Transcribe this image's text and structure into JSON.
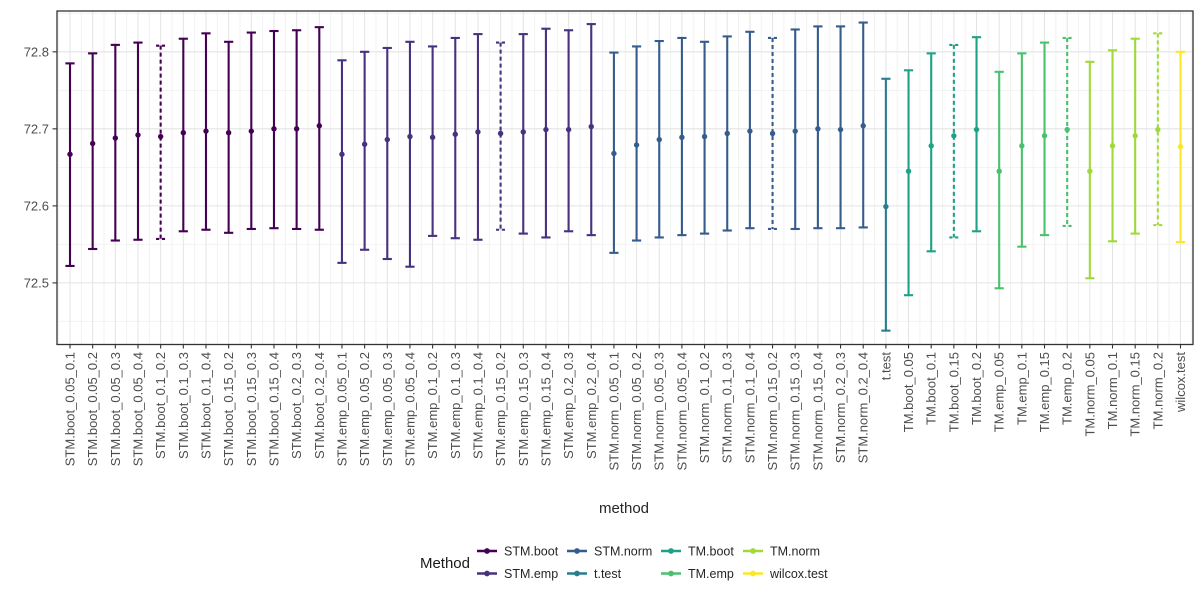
{
  "chart_data": {
    "type": "pointrange",
    "title": "",
    "xlabel": "method",
    "ylabel": "",
    "ylim": [
      72.42,
      72.853
    ],
    "y_ticks": [
      72.5,
      72.6,
      72.7,
      72.8
    ],
    "y_minor_ticks": [
      72.45,
      72.55,
      72.65,
      72.75,
      72.85
    ],
    "grid": true,
    "legend_position": "bottom",
    "points": [
      {
        "label": "STM.boot_0.05_0.1",
        "group": "STM.boot",
        "mid": 72.667,
        "lo": 72.522,
        "hi": 72.785,
        "dashed": false
      },
      {
        "label": "STM.boot_0.05_0.2",
        "group": "STM.boot",
        "mid": 72.681,
        "lo": 72.544,
        "hi": 72.798,
        "dashed": false
      },
      {
        "label": "STM.boot_0.05_0.3",
        "group": "STM.boot",
        "mid": 72.688,
        "lo": 72.555,
        "hi": 72.809,
        "dashed": false
      },
      {
        "label": "STM.boot_0.05_0.4",
        "group": "STM.boot",
        "mid": 72.692,
        "lo": 72.556,
        "hi": 72.812,
        "dashed": false
      },
      {
        "label": "STM.boot_0.1_0.2",
        "group": "STM.boot",
        "mid": 72.69,
        "lo": 72.557,
        "hi": 72.808,
        "dashed": true
      },
      {
        "label": "STM.boot_0.1_0.3",
        "group": "STM.boot",
        "mid": 72.695,
        "lo": 72.567,
        "hi": 72.817,
        "dashed": false
      },
      {
        "label": "STM.boot_0.1_0.4",
        "group": "STM.boot",
        "mid": 72.697,
        "lo": 72.569,
        "hi": 72.824,
        "dashed": false
      },
      {
        "label": "STM.boot_0.15_0.2",
        "group": "STM.boot",
        "mid": 72.695,
        "lo": 72.565,
        "hi": 72.813,
        "dashed": false
      },
      {
        "label": "STM.boot_0.15_0.3",
        "group": "STM.boot",
        "mid": 72.697,
        "lo": 72.57,
        "hi": 72.825,
        "dashed": false
      },
      {
        "label": "STM.boot_0.15_0.4",
        "group": "STM.boot",
        "mid": 72.7,
        "lo": 72.571,
        "hi": 72.827,
        "dashed": false
      },
      {
        "label": "STM.boot_0.2_0.3",
        "group": "STM.boot",
        "mid": 72.7,
        "lo": 72.57,
        "hi": 72.828,
        "dashed": false
      },
      {
        "label": "STM.boot_0.2_0.4",
        "group": "STM.boot",
        "mid": 72.704,
        "lo": 72.569,
        "hi": 72.832,
        "dashed": false
      },
      {
        "label": "STM.emp_0.05_0.1",
        "group": "STM.emp",
        "mid": 72.667,
        "lo": 72.526,
        "hi": 72.789,
        "dashed": false
      },
      {
        "label": "STM.emp_0.05_0.2",
        "group": "STM.emp",
        "mid": 72.68,
        "lo": 72.543,
        "hi": 72.8,
        "dashed": false
      },
      {
        "label": "STM.emp_0.05_0.3",
        "group": "STM.emp",
        "mid": 72.686,
        "lo": 72.531,
        "hi": 72.805,
        "dashed": false
      },
      {
        "label": "STM.emp_0.05_0.4",
        "group": "STM.emp",
        "mid": 72.69,
        "lo": 72.521,
        "hi": 72.813,
        "dashed": false
      },
      {
        "label": "STM.emp_0.1_0.2",
        "group": "STM.emp",
        "mid": 72.689,
        "lo": 72.561,
        "hi": 72.807,
        "dashed": false
      },
      {
        "label": "STM.emp_0.1_0.3",
        "group": "STM.emp",
        "mid": 72.693,
        "lo": 72.558,
        "hi": 72.818,
        "dashed": false
      },
      {
        "label": "STM.emp_0.1_0.4",
        "group": "STM.emp",
        "mid": 72.696,
        "lo": 72.556,
        "hi": 72.823,
        "dashed": false
      },
      {
        "label": "STM.emp_0.15_0.2",
        "group": "STM.emp",
        "mid": 72.694,
        "lo": 72.569,
        "hi": 72.812,
        "dashed": true
      },
      {
        "label": "STM.emp_0.15_0.3",
        "group": "STM.emp",
        "mid": 72.696,
        "lo": 72.564,
        "hi": 72.823,
        "dashed": false
      },
      {
        "label": "STM.emp_0.15_0.4",
        "group": "STM.emp",
        "mid": 72.699,
        "lo": 72.559,
        "hi": 72.83,
        "dashed": false
      },
      {
        "label": "STM.emp_0.2_0.3",
        "group": "STM.emp",
        "mid": 72.699,
        "lo": 72.567,
        "hi": 72.828,
        "dashed": false
      },
      {
        "label": "STM.emp_0.2_0.4",
        "group": "STM.emp",
        "mid": 72.703,
        "lo": 72.562,
        "hi": 72.836,
        "dashed": false
      },
      {
        "label": "STM.norm_0.05_0.1",
        "group": "STM.norm",
        "mid": 72.668,
        "lo": 72.539,
        "hi": 72.799,
        "dashed": false
      },
      {
        "label": "STM.norm_0.05_0.2",
        "group": "STM.norm",
        "mid": 72.679,
        "lo": 72.555,
        "hi": 72.807,
        "dashed": false
      },
      {
        "label": "STM.norm_0.05_0.3",
        "group": "STM.norm",
        "mid": 72.686,
        "lo": 72.559,
        "hi": 72.814,
        "dashed": false
      },
      {
        "label": "STM.norm_0.05_0.4",
        "group": "STM.norm",
        "mid": 72.689,
        "lo": 72.562,
        "hi": 72.818,
        "dashed": false
      },
      {
        "label": "STM.norm_0.1_0.2",
        "group": "STM.norm",
        "mid": 72.69,
        "lo": 72.564,
        "hi": 72.813,
        "dashed": false
      },
      {
        "label": "STM.norm_0.1_0.3",
        "group": "STM.norm",
        "mid": 72.694,
        "lo": 72.568,
        "hi": 72.82,
        "dashed": false
      },
      {
        "label": "STM.norm_0.1_0.4",
        "group": "STM.norm",
        "mid": 72.697,
        "lo": 72.571,
        "hi": 72.826,
        "dashed": false
      },
      {
        "label": "STM.norm_0.15_0.2",
        "group": "STM.norm",
        "mid": 72.694,
        "lo": 72.57,
        "hi": 72.818,
        "dashed": true
      },
      {
        "label": "STM.norm_0.15_0.3",
        "group": "STM.norm",
        "mid": 72.697,
        "lo": 72.57,
        "hi": 72.829,
        "dashed": false
      },
      {
        "label": "STM.norm_0.15_0.4",
        "group": "STM.norm",
        "mid": 72.7,
        "lo": 72.571,
        "hi": 72.833,
        "dashed": false
      },
      {
        "label": "STM.norm_0.2_0.3",
        "group": "STM.norm",
        "mid": 72.699,
        "lo": 72.571,
        "hi": 72.833,
        "dashed": false
      },
      {
        "label": "STM.norm_0.2_0.4",
        "group": "STM.norm",
        "mid": 72.704,
        "lo": 72.572,
        "hi": 72.838,
        "dashed": false
      },
      {
        "label": "t.test",
        "group": "t.test",
        "mid": 72.599,
        "lo": 72.438,
        "hi": 72.765,
        "dashed": false
      },
      {
        "label": "TM.boot_0.05",
        "group": "TM.boot",
        "mid": 72.645,
        "lo": 72.484,
        "hi": 72.776,
        "dashed": false
      },
      {
        "label": "TM.boot_0.1",
        "group": "TM.boot",
        "mid": 72.678,
        "lo": 72.541,
        "hi": 72.798,
        "dashed": false
      },
      {
        "label": "TM.boot_0.15",
        "group": "TM.boot",
        "mid": 72.691,
        "lo": 72.559,
        "hi": 72.809,
        "dashed": true
      },
      {
        "label": "TM.boot_0.2",
        "group": "TM.boot",
        "mid": 72.699,
        "lo": 72.567,
        "hi": 72.819,
        "dashed": false
      },
      {
        "label": "TM.emp_0.05",
        "group": "TM.emp",
        "mid": 72.645,
        "lo": 72.493,
        "hi": 72.774,
        "dashed": false
      },
      {
        "label": "TM.emp_0.1",
        "group": "TM.emp",
        "mid": 72.678,
        "lo": 72.547,
        "hi": 72.798,
        "dashed": false
      },
      {
        "label": "TM.emp_0.15",
        "group": "TM.emp",
        "mid": 72.691,
        "lo": 72.562,
        "hi": 72.812,
        "dashed": false
      },
      {
        "label": "TM.emp_0.2",
        "group": "TM.emp",
        "mid": 72.699,
        "lo": 72.574,
        "hi": 72.818,
        "dashed": true
      },
      {
        "label": "TM.norm_0.05",
        "group": "TM.norm",
        "mid": 72.645,
        "lo": 72.506,
        "hi": 72.787,
        "dashed": false
      },
      {
        "label": "TM.norm_0.1",
        "group": "TM.norm",
        "mid": 72.678,
        "lo": 72.554,
        "hi": 72.802,
        "dashed": false
      },
      {
        "label": "TM.norm_0.15",
        "group": "TM.norm",
        "mid": 72.691,
        "lo": 72.564,
        "hi": 72.817,
        "dashed": false
      },
      {
        "label": "TM.norm_0.2",
        "group": "TM.norm",
        "mid": 72.699,
        "lo": 72.575,
        "hi": 72.824,
        "dashed": true
      },
      {
        "label": "wilcox.test",
        "group": "wilcox.test",
        "mid": 72.677,
        "lo": 72.553,
        "hi": 72.8,
        "dashed": false
      }
    ]
  },
  "colors": {
    "STM.boot": "#440154",
    "STM.emp": "#46327E",
    "STM.norm": "#365C8D",
    "t.test": "#277F8E",
    "TM.boot": "#1FA187",
    "TM.emp": "#4AC16D",
    "TM.norm": "#9FDA3A",
    "wilcox.test": "#FDE725"
  },
  "legend": {
    "title": "Method",
    "entries": [
      {
        "label": "STM.boot",
        "color": "#440154"
      },
      {
        "label": "STM.emp",
        "color": "#46327E"
      },
      {
        "label": "STM.norm",
        "color": "#365C8D"
      },
      {
        "label": "t.test",
        "color": "#277F8E"
      },
      {
        "label": "TM.boot",
        "color": "#1FA187"
      },
      {
        "label": "TM.emp",
        "color": "#4AC16D"
      },
      {
        "label": "TM.norm",
        "color": "#9FDA3A"
      },
      {
        "label": "wilcox.test",
        "color": "#FDE725"
      }
    ]
  },
  "style": {
    "grid_major": "#e4e4e4",
    "grid_minor": "#f2f2f2",
    "panel_border": "#333333",
    "tick_color": "#333333",
    "axis_text": "#4d4d4d"
  }
}
